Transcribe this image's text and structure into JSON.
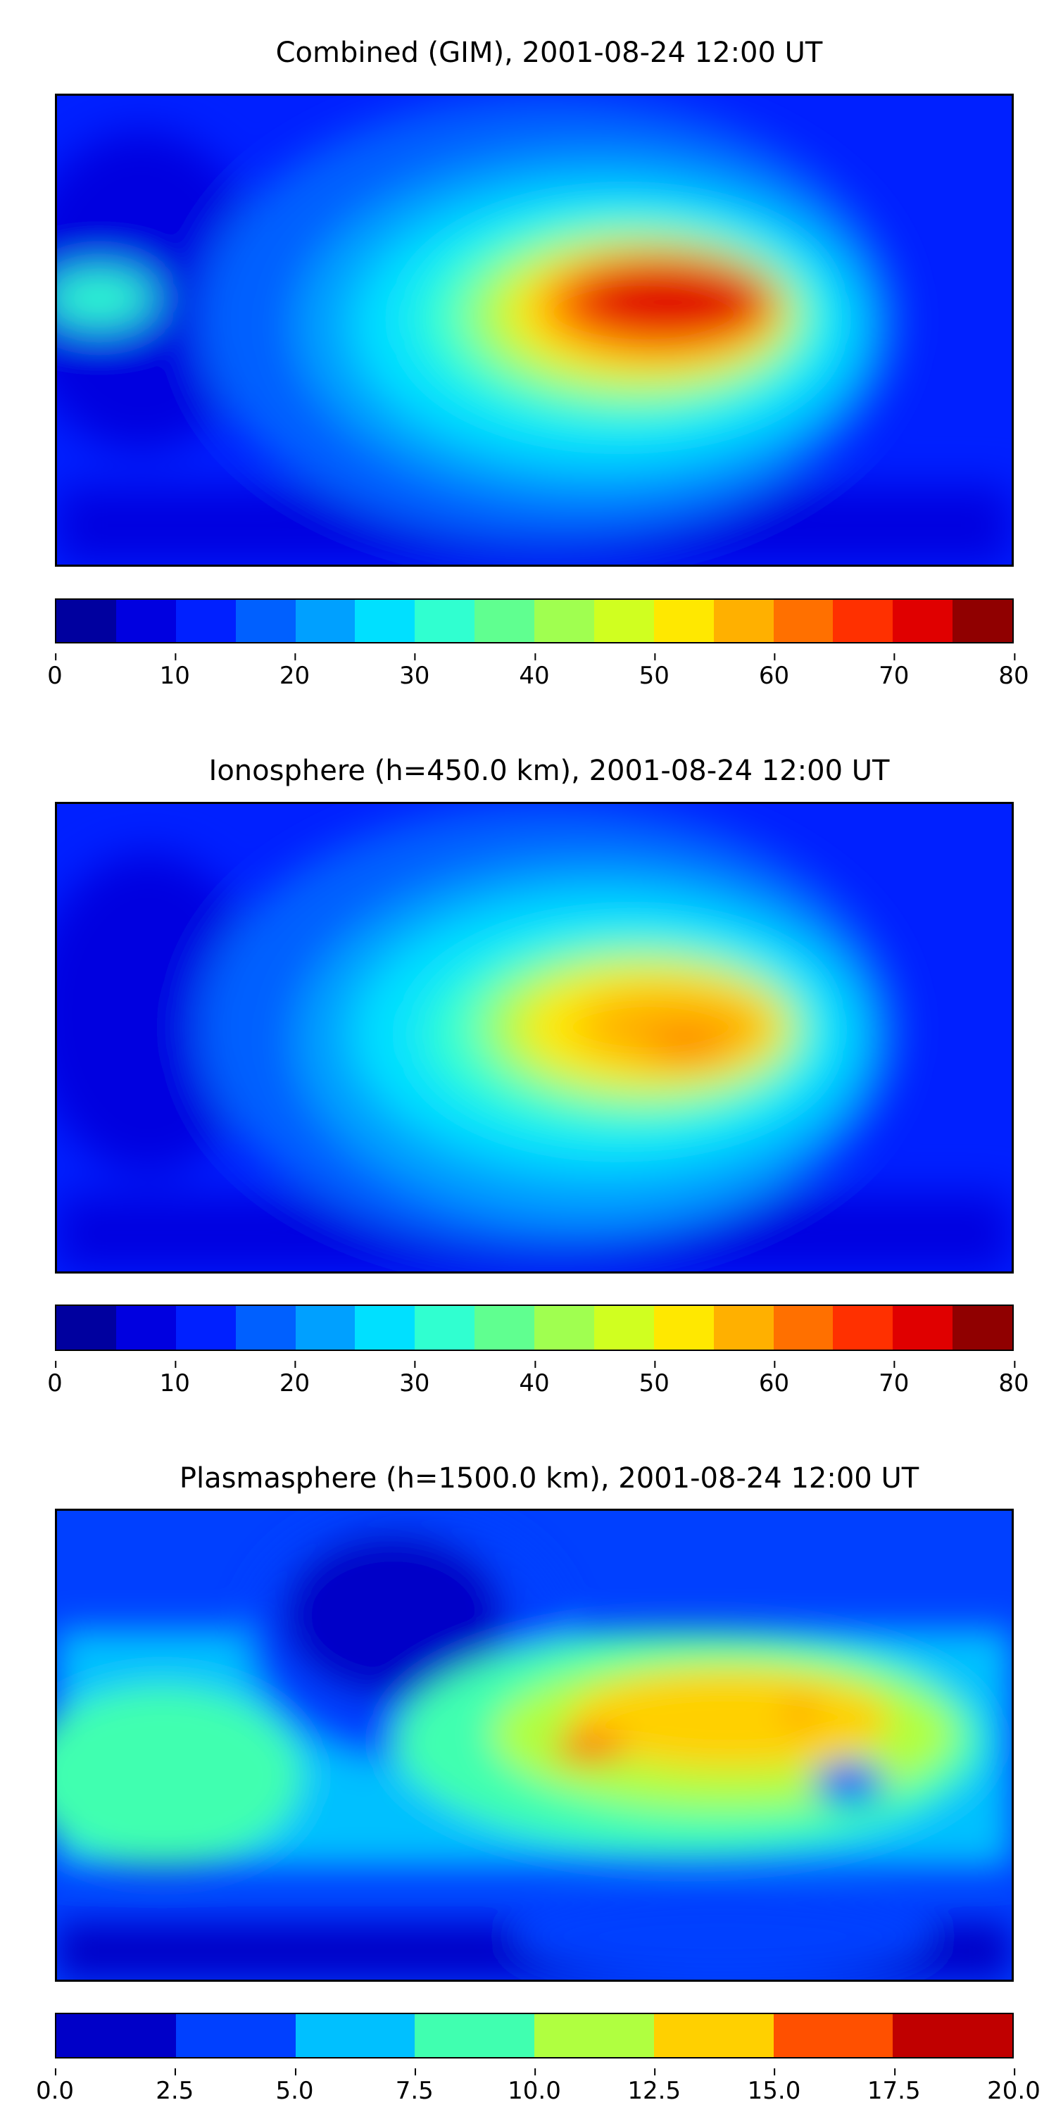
{
  "panels": [
    {
      "title": "Combined (GIM), 2001-08-24 12:00 UT",
      "colorbar": {
        "levels": [
          0,
          5,
          10,
          15,
          20,
          25,
          30,
          35,
          40,
          45,
          50,
          55,
          60,
          65,
          70,
          75,
          80
        ],
        "tick_labels": [
          "0",
          "10",
          "20",
          "30",
          "40",
          "50",
          "60",
          "70",
          "80"
        ],
        "colors": [
          "#00009f",
          "#0000e0",
          "#0020ff",
          "#0060ff",
          "#00a0ff",
          "#00e0ff",
          "#30ffd0",
          "#60ff90",
          "#a0ff50",
          "#d0ff20",
          "#ffe800",
          "#ffb000",
          "#ff7000",
          "#ff3000",
          "#e00000",
          "#900000"
        ],
        "range": [
          0,
          80
        ]
      }
    },
    {
      "title": "Ionosphere  (h=450.0 km), 2001-08-24 12:00 UT",
      "colorbar": {
        "levels": [
          0,
          5,
          10,
          15,
          20,
          25,
          30,
          35,
          40,
          45,
          50,
          55,
          60,
          65,
          70,
          75,
          80
        ],
        "tick_labels": [
          "0",
          "10",
          "20",
          "30",
          "40",
          "50",
          "60",
          "70",
          "80"
        ],
        "colors": [
          "#00009f",
          "#0000e0",
          "#0020ff",
          "#0060ff",
          "#00a0ff",
          "#00e0ff",
          "#30ffd0",
          "#60ff90",
          "#a0ff50",
          "#d0ff20",
          "#ffe800",
          "#ffb000",
          "#ff7000",
          "#ff3000",
          "#e00000",
          "#900000"
        ],
        "range": [
          0,
          80
        ]
      }
    },
    {
      "title": "Plasmasphere (h=1500.0 km), 2001-08-24 12:00 UT",
      "colorbar": {
        "levels": [
          0,
          2.5,
          5,
          7.5,
          10,
          12.5,
          15,
          17.5,
          20
        ],
        "tick_labels": [
          "0.0",
          "2.5",
          "5.0",
          "7.5",
          "10.0",
          "12.5",
          "15.0",
          "17.5",
          "20.0"
        ],
        "colors": [
          "#0000c8",
          "#0040ff",
          "#00c0ff",
          "#40ffb0",
          "#b0ff40",
          "#ffd000",
          "#ff5000",
          "#c00000"
        ],
        "range": [
          0,
          20
        ]
      }
    }
  ]
}
